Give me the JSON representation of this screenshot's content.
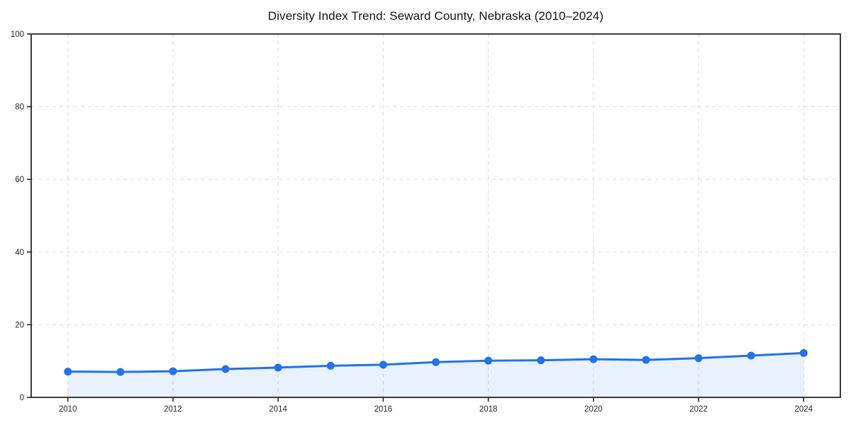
{
  "chart_data": {
    "type": "line",
    "title": "Diversity Index Trend: Seward County, Nebraska (2010–2024)",
    "x": [
      2010,
      2011,
      2012,
      2013,
      2014,
      2015,
      2016,
      2017,
      2018,
      2019,
      2020,
      2021,
      2022,
      2023,
      2024
    ],
    "series": [
      {
        "name": "Diversity Index",
        "values": [
          7.1,
          7.0,
          7.2,
          7.8,
          8.2,
          8.7,
          9.0,
          9.7,
          10.1,
          10.2,
          10.5,
          10.3,
          10.8,
          11.5,
          12.2
        ]
      }
    ],
    "xlabel": "",
    "ylabel": "",
    "xticks": [
      2010,
      2012,
      2014,
      2016,
      2018,
      2020,
      2022,
      2024
    ],
    "yticks": [
      0,
      20,
      40,
      60,
      80,
      100
    ],
    "ylim": [
      0,
      100
    ],
    "grid": true,
    "grid_style": "dashed",
    "legend": "none",
    "colors": {
      "line": "#2272e8",
      "marker": "#2272e8",
      "area_fill": "rgba(34,114,232,0.10)",
      "gridline": "#dadada",
      "spine": "#262626",
      "tick_label": "#262626",
      "title": "#141414",
      "background": "#ffffff"
    }
  }
}
